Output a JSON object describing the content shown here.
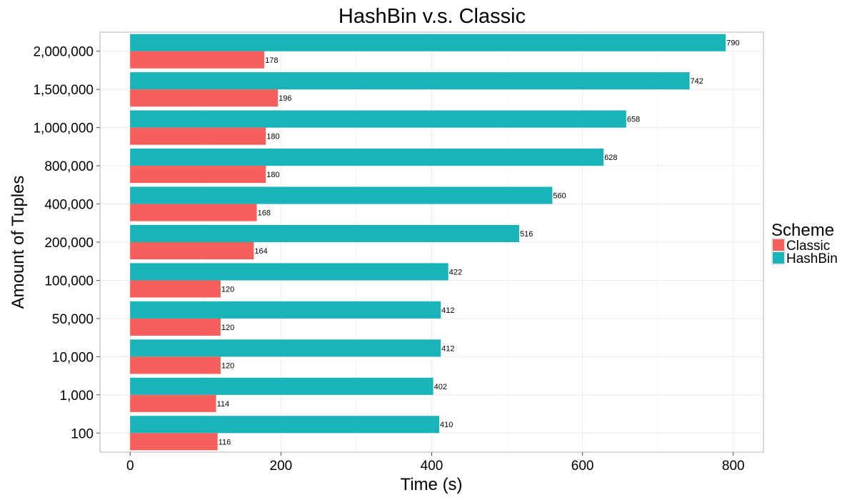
{
  "chart_data": {
    "type": "bar",
    "orientation": "horizontal",
    "title": "HashBin v.s. Classic",
    "xlabel": "Time (s)",
    "ylabel": "Amount of Tuples",
    "categories": [
      "100",
      "1,000",
      "10,000",
      "50,000",
      "100,000",
      "200,000",
      "400,000",
      "800,000",
      "1,000,000",
      "1,500,000",
      "2,000,000"
    ],
    "series": [
      {
        "name": "HashBin",
        "color": "#19B4B8",
        "values": [
          410,
          402,
          412,
          412,
          422,
          516,
          560,
          628,
          658,
          742,
          790
        ]
      },
      {
        "name": "Classic",
        "color": "#F5605C",
        "values": [
          116,
          114,
          120,
          120,
          120,
          164,
          168,
          180,
          180,
          196,
          178
        ]
      }
    ],
    "xlim": [
      -40,
      840
    ],
    "xticks": [
      0,
      200,
      400,
      600,
      800
    ],
    "grid": true,
    "legend": {
      "title": "Scheme",
      "position": "right",
      "entries": [
        {
          "label": "Classic",
          "color": "#F5605C"
        },
        {
          "label": "HashBin",
          "color": "#19B4B8"
        }
      ]
    }
  }
}
